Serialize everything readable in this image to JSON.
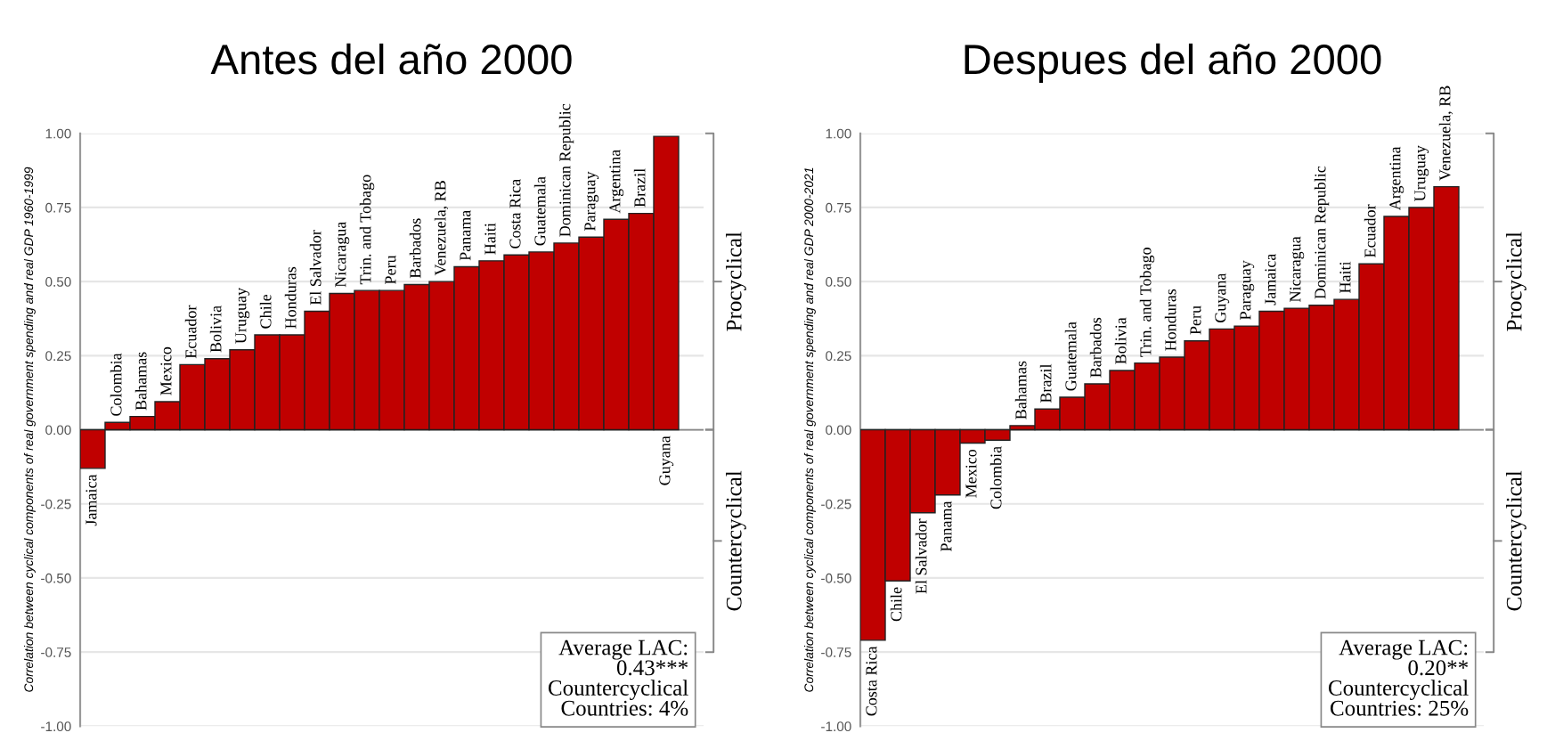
{
  "chart_data": [
    {
      "type": "bar",
      "title": "Antes del año 2000",
      "ylabel": "Correlation between cyclical components of real government spending and real GDP 1960-1999",
      "categories": [
        "Jamaica",
        "Colombia",
        "Bahamas",
        "Mexico",
        "Ecuador",
        "Bolivia",
        "Uruguay",
        "Chile",
        "Honduras",
        "El Salvador",
        "Nicaragua",
        "Trin. and Tobago",
        "Peru",
        "Barbados",
        "Venezuela, RB",
        "Panama",
        "Haiti",
        "Costa Rica",
        "Guatemala",
        "Dominican Republic",
        "Paraguay",
        "Argentina",
        "Brazil",
        "Guyana"
      ],
      "values": [
        -0.13,
        0.025,
        0.045,
        0.095,
        0.22,
        0.24,
        0.27,
        0.32,
        0.32,
        0.4,
        0.46,
        0.47,
        0.47,
        0.49,
        0.5,
        0.55,
        0.57,
        0.59,
        0.6,
        0.63,
        0.65,
        0.71,
        0.73,
        0.99
      ],
      "color": "#c00000",
      "ylim": [
        -1.0,
        1.0
      ],
      "yticks": [
        {
          "value": 1.0,
          "label": "1.00"
        },
        {
          "value": 0.75,
          "label": "0.75"
        },
        {
          "value": 0.5,
          "label": "0.50"
        },
        {
          "value": 0.25,
          "label": "0.25"
        },
        {
          "value": 0,
          "label": "0.00"
        },
        {
          "value": -0.25,
          "label": "-0.25"
        },
        {
          "value": -0.5,
          "label": "-0.50"
        },
        {
          "value": -0.75,
          "label": "-0.75"
        },
        {
          "value": -1.0,
          "label": "-1.00"
        }
      ],
      "grid": "y",
      "annotations": [
        "Procyclical",
        "Countercyclical",
        "Average LAC:\n0.43***\nCountercyclical\nCountries: 4%"
      ]
    },
    {
      "type": "bar",
      "title": "Despues del año 2000",
      "ylabel": "Correlation between cyclical components of real government spending and real GDP 2000-2021",
      "categories": [
        "Costa Rica",
        "Chile",
        "El Salvador",
        "Panama",
        "Mexico",
        "Colombia",
        "Bahamas",
        "Brazil",
        "Guatemala",
        "Barbados",
        "Bolivia",
        "Trin. and Tobago",
        "Honduras",
        "Peru",
        "Guyana",
        "Paraguay",
        "Jamaica",
        "Nicaragua",
        "Dominican Republic",
        "Haiti",
        "Ecuador",
        "Argentina",
        "Uruguay",
        "Venezuela, RB"
      ],
      "values": [
        -0.71,
        -0.51,
        -0.28,
        -0.22,
        -0.045,
        -0.035,
        0.014,
        0.07,
        0.11,
        0.155,
        0.2,
        0.225,
        0.245,
        0.3,
        0.34,
        0.35,
        0.4,
        0.41,
        0.42,
        0.44,
        0.56,
        0.72,
        0.75,
        0.82
      ],
      "color": "#c00000",
      "ylim": [
        -1.0,
        1.0
      ],
      "yticks": [
        {
          "value": 1.0,
          "label": "1.00"
        },
        {
          "value": 0.75,
          "label": "0.75"
        },
        {
          "value": 0.5,
          "label": "0.50"
        },
        {
          "value": 0.25,
          "label": "0.25"
        },
        {
          "value": 0,
          "label": "0.00"
        },
        {
          "value": -0.25,
          "label": "-0.25"
        },
        {
          "value": -0.5,
          "label": "-0.50"
        },
        {
          "value": -0.75,
          "label": "-0.75"
        },
        {
          "value": -1.0,
          "label": "-1.00"
        }
      ],
      "grid": "y",
      "annotations": [
        "Procyclical",
        "Countercyclical",
        "Average LAC:\n0.20**\nCountercyclical\nCountries: 25%"
      ]
    }
  ]
}
